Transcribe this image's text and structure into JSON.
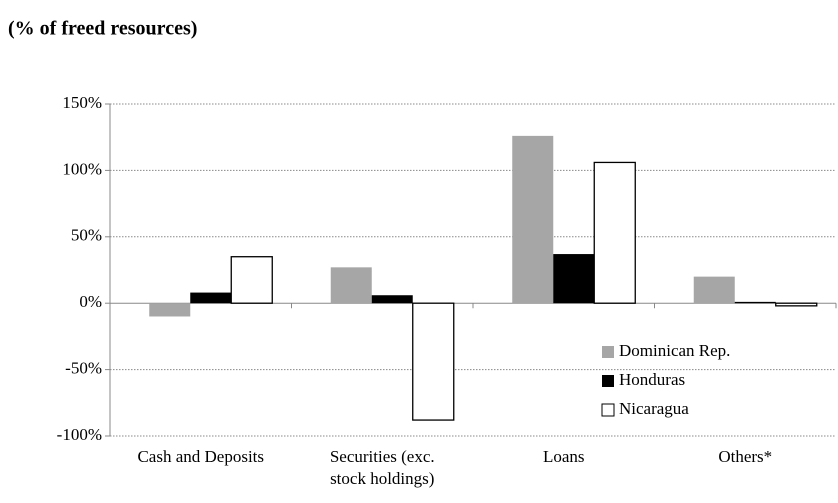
{
  "chart_data": {
    "type": "bar",
    "title": "(% of freed resources)",
    "categories": [
      "Cash and Deposits",
      "Securities (exc.\nstock holdings)",
      "Loans",
      "Others*"
    ],
    "series": [
      {
        "name": "Dominican Rep.",
        "color": "#a6a6a6",
        "values": [
          -10,
          27,
          126,
          20
        ]
      },
      {
        "name": "Honduras",
        "color": "#000000",
        "values": [
          8,
          6,
          37,
          1
        ]
      },
      {
        "name": "Nicaragua",
        "color": "#ffffff",
        "values": [
          35,
          -88,
          106,
          -2
        ]
      }
    ],
    "ylim": [
      -100,
      150
    ],
    "yticks": [
      {
        "value": -100,
        "label": "-100%"
      },
      {
        "value": -50,
        "label": "-50%"
      },
      {
        "value": 0,
        "label": "0%"
      },
      {
        "value": 50,
        "label": "50%"
      },
      {
        "value": 100,
        "label": "100%"
      },
      {
        "value": 150,
        "label": "150%"
      }
    ],
    "grid": true,
    "legend": "lower right"
  }
}
